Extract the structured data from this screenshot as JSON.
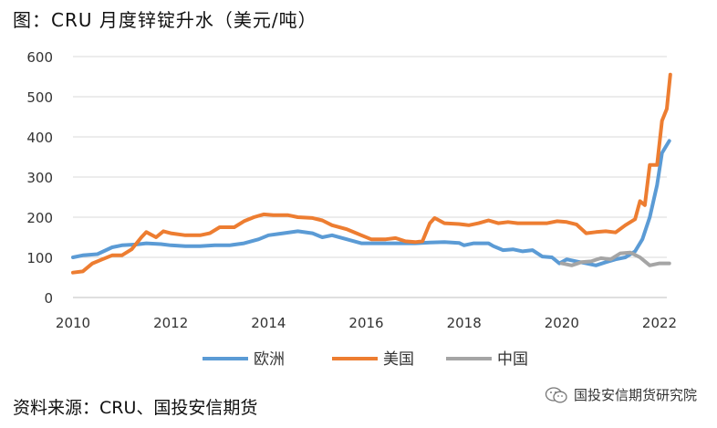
{
  "title": "图：CRU 月度锌锭升水（美元/吨）",
  "source": "资料来源：CRU、国投安信期货",
  "watermark": "国投安信期货研究院",
  "chart_data": {
    "type": "line",
    "title": "图：CRU 月度锌锭升水（美元/吨）",
    "xlabel": "",
    "ylabel": "",
    "xlim": [
      2010,
      2022.4
    ],
    "ylim": [
      0,
      600
    ],
    "x_ticks": [
      "2010",
      "2012",
      "2014",
      "2016",
      "2018",
      "2020",
      "2022"
    ],
    "y_ticks": [
      "0",
      "100",
      "200",
      "300",
      "400",
      "500",
      "600"
    ],
    "grid": "horizontal",
    "legend_position": "bottom",
    "series": [
      {
        "name": "欧洲",
        "color": "#5b9bd5",
        "points": [
          [
            2010.0,
            100
          ],
          [
            2010.2,
            105
          ],
          [
            2010.5,
            108
          ],
          [
            2010.8,
            125
          ],
          [
            2011.0,
            130
          ],
          [
            2011.3,
            132
          ],
          [
            2011.5,
            135
          ],
          [
            2011.8,
            133
          ],
          [
            2012.0,
            130
          ],
          [
            2012.3,
            128
          ],
          [
            2012.6,
            128
          ],
          [
            2012.9,
            130
          ],
          [
            2013.2,
            130
          ],
          [
            2013.5,
            135
          ],
          [
            2013.8,
            145
          ],
          [
            2014.0,
            155
          ],
          [
            2014.3,
            160
          ],
          [
            2014.6,
            165
          ],
          [
            2014.9,
            160
          ],
          [
            2015.1,
            150
          ],
          [
            2015.3,
            155
          ],
          [
            2015.6,
            145
          ],
          [
            2015.9,
            135
          ],
          [
            2016.2,
            135
          ],
          [
            2016.5,
            135
          ],
          [
            2016.8,
            135
          ],
          [
            2017.0,
            135
          ],
          [
            2017.3,
            137
          ],
          [
            2017.6,
            138
          ],
          [
            2017.9,
            136
          ],
          [
            2018.0,
            130
          ],
          [
            2018.2,
            135
          ],
          [
            2018.5,
            135
          ],
          [
            2018.6,
            128
          ],
          [
            2018.8,
            118
          ],
          [
            2019.0,
            120
          ],
          [
            2019.2,
            115
          ],
          [
            2019.4,
            118
          ],
          [
            2019.6,
            102
          ],
          [
            2019.8,
            100
          ],
          [
            2019.95,
            85
          ],
          [
            2020.1,
            95
          ],
          [
            2020.3,
            90
          ],
          [
            2020.5,
            85
          ],
          [
            2020.7,
            80
          ],
          [
            2020.9,
            88
          ],
          [
            2021.1,
            95
          ],
          [
            2021.3,
            100
          ],
          [
            2021.5,
            115
          ],
          [
            2021.65,
            145
          ],
          [
            2021.8,
            200
          ],
          [
            2021.95,
            280
          ],
          [
            2022.05,
            360
          ],
          [
            2022.2,
            390
          ]
        ]
      },
      {
        "name": "美国",
        "color": "#ed7d31",
        "points": [
          [
            2010.0,
            62
          ],
          [
            2010.2,
            65
          ],
          [
            2010.4,
            85
          ],
          [
            2010.6,
            95
          ],
          [
            2010.8,
            105
          ],
          [
            2011.0,
            105
          ],
          [
            2011.2,
            120
          ],
          [
            2011.4,
            150
          ],
          [
            2011.5,
            163
          ],
          [
            2011.7,
            150
          ],
          [
            2011.85,
            165
          ],
          [
            2012.0,
            160
          ],
          [
            2012.3,
            155
          ],
          [
            2012.6,
            155
          ],
          [
            2012.8,
            160
          ],
          [
            2013.0,
            175
          ],
          [
            2013.3,
            175
          ],
          [
            2013.5,
            190
          ],
          [
            2013.7,
            200
          ],
          [
            2013.9,
            207
          ],
          [
            2014.1,
            205
          ],
          [
            2014.4,
            205
          ],
          [
            2014.6,
            200
          ],
          [
            2014.9,
            198
          ],
          [
            2015.1,
            192
          ],
          [
            2015.3,
            180
          ],
          [
            2015.6,
            170
          ],
          [
            2015.9,
            155
          ],
          [
            2016.1,
            145
          ],
          [
            2016.4,
            145
          ],
          [
            2016.6,
            148
          ],
          [
            2016.8,
            140
          ],
          [
            2017.0,
            138
          ],
          [
            2017.15,
            140
          ],
          [
            2017.3,
            185
          ],
          [
            2017.4,
            198
          ],
          [
            2017.6,
            185
          ],
          [
            2017.9,
            183
          ],
          [
            2018.1,
            180
          ],
          [
            2018.3,
            185
          ],
          [
            2018.5,
            192
          ],
          [
            2018.7,
            185
          ],
          [
            2018.9,
            188
          ],
          [
            2019.1,
            185
          ],
          [
            2019.4,
            185
          ],
          [
            2019.7,
            185
          ],
          [
            2019.9,
            190
          ],
          [
            2020.1,
            188
          ],
          [
            2020.3,
            182
          ],
          [
            2020.5,
            160
          ],
          [
            2020.7,
            163
          ],
          [
            2020.9,
            165
          ],
          [
            2021.1,
            162
          ],
          [
            2021.3,
            180
          ],
          [
            2021.5,
            195
          ],
          [
            2021.6,
            240
          ],
          [
            2021.7,
            230
          ],
          [
            2021.8,
            330
          ],
          [
            2021.95,
            330
          ],
          [
            2022.05,
            440
          ],
          [
            2022.15,
            470
          ],
          [
            2022.22,
            555
          ]
        ]
      },
      {
        "name": "中国",
        "color": "#a5a5a5",
        "points": [
          [
            2020.0,
            85
          ],
          [
            2020.2,
            80
          ],
          [
            2020.4,
            88
          ],
          [
            2020.6,
            90
          ],
          [
            2020.8,
            98
          ],
          [
            2021.0,
            95
          ],
          [
            2021.2,
            110
          ],
          [
            2021.4,
            112
          ],
          [
            2021.6,
            100
          ],
          [
            2021.8,
            80
          ],
          [
            2022.0,
            85
          ],
          [
            2022.2,
            85
          ]
        ]
      }
    ]
  }
}
